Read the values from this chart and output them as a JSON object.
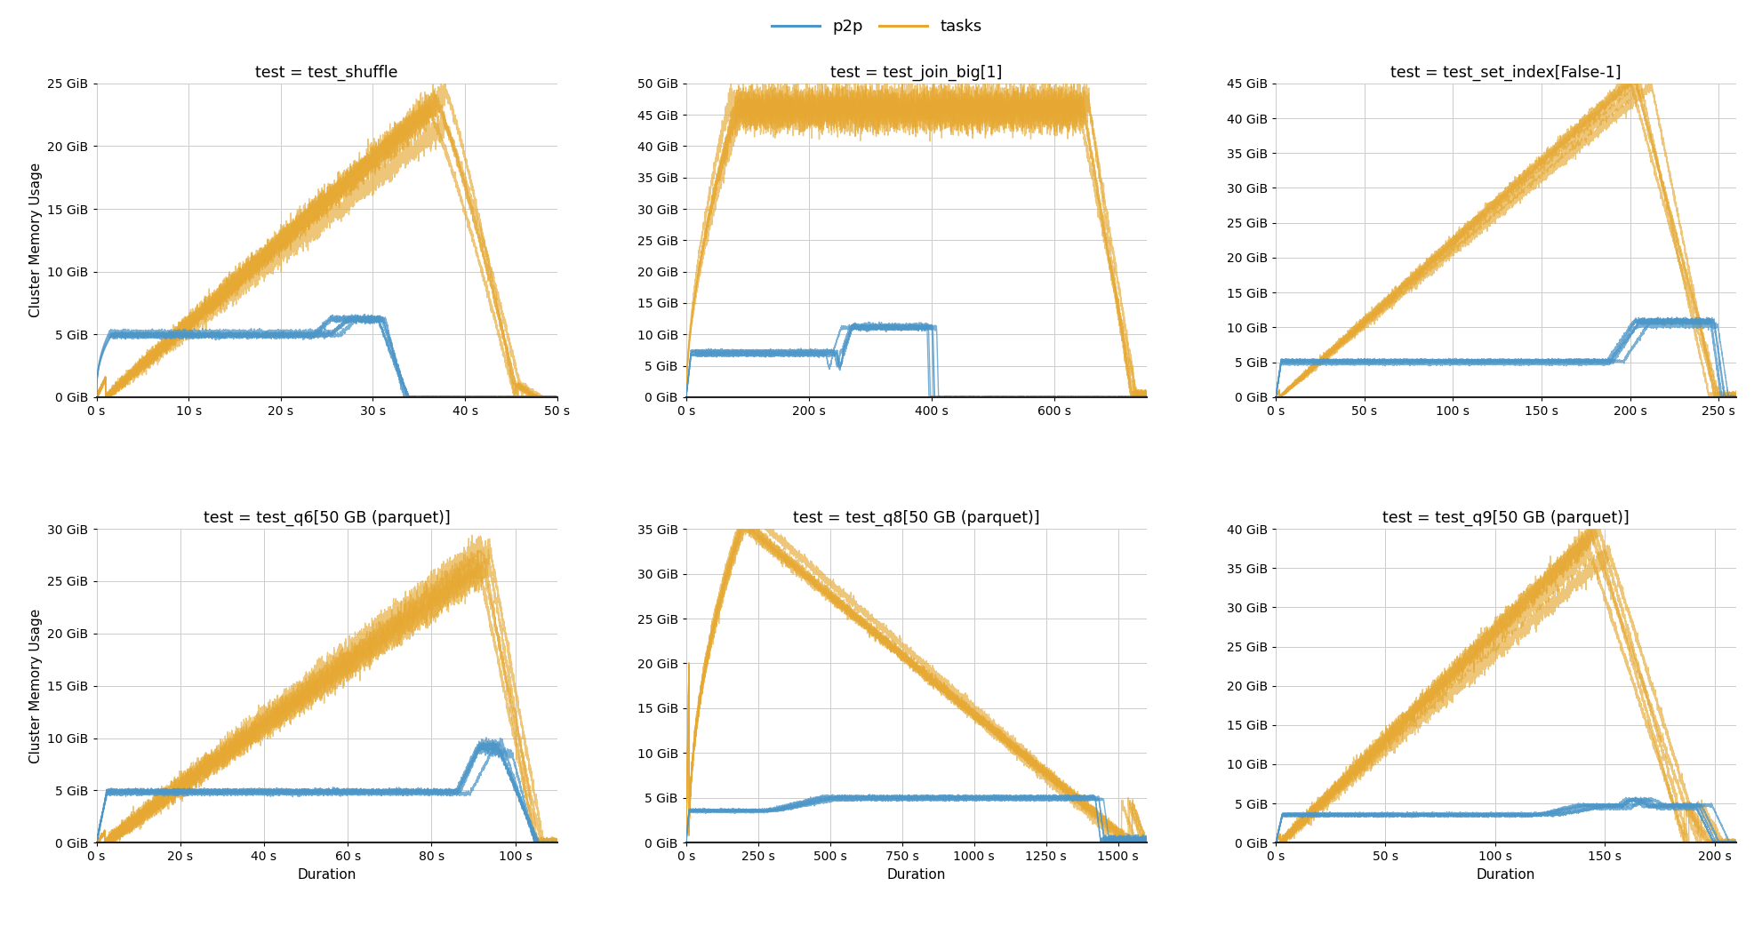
{
  "figure_size": [
    19.73,
    10.42
  ],
  "dpi": 100,
  "background_color": "#ffffff",
  "p2p_color": "#4c96c8",
  "tasks_color": "#e6a832",
  "p2p_alpha": 0.75,
  "tasks_alpha": 0.65,
  "line_width": 1.0,
  "legend_labels": [
    "p2p",
    "tasks"
  ],
  "subplot_titles": [
    "test = test_shuffle",
    "test = test_join_big[1]",
    "test = test_set_index[False-1]",
    "test = test_q6[50 GB (parquet)]",
    "test = test_q8[50 GB (parquet)]",
    "test = test_q9[50 GB (parquet)]"
  ],
  "ylabel": "Cluster Memory Usage",
  "xlabel": "Duration",
  "grid_color": "#cccccc",
  "subplots": {
    "test_shuffle": {
      "xlim": [
        0,
        50
      ],
      "ylim": [
        0,
        25
      ],
      "xticks": [
        0,
        10,
        20,
        30,
        40,
        50
      ],
      "xticklabels": [
        "0 s",
        "10 s",
        "20 s",
        "30 s",
        "40 s",
        "50 s"
      ],
      "yticks": [
        0,
        5,
        10,
        15,
        20,
        25
      ],
      "yticklabels": [
        "0 GiB",
        "5 GiB",
        "10 GiB",
        "15 GiB",
        "20 GiB",
        "25 GiB"
      ]
    },
    "test_join_big": {
      "xlim": [
        0,
        750
      ],
      "ylim": [
        0,
        50
      ],
      "xticks": [
        0,
        200,
        400,
        600
      ],
      "xticklabels": [
        "0 s",
        "200 s",
        "400 s",
        "600 s"
      ],
      "yticks": [
        0,
        5,
        10,
        15,
        20,
        25,
        30,
        35,
        40,
        45,
        50
      ],
      "yticklabels": [
        "0 GiB",
        "5 GiB",
        "10 GiB",
        "15 GiB",
        "20 GiB",
        "25 GiB",
        "30 GiB",
        "35 GiB",
        "40 GiB",
        "45 GiB",
        "50 GiB"
      ]
    },
    "test_set_index": {
      "xlim": [
        0,
        260
      ],
      "ylim": [
        0,
        45
      ],
      "xticks": [
        0,
        50,
        100,
        150,
        200,
        250
      ],
      "xticklabels": [
        "0 s",
        "50 s",
        "100 s",
        "150 s",
        "200 s",
        "250 s"
      ],
      "yticks": [
        0,
        5,
        10,
        15,
        20,
        25,
        30,
        35,
        40,
        45
      ],
      "yticklabels": [
        "0 GiB",
        "5 GiB",
        "10 GiB",
        "15 GiB",
        "20 GiB",
        "25 GiB",
        "30 GiB",
        "35 GiB",
        "40 GiB",
        "45 GiB"
      ]
    },
    "test_q6": {
      "xlim": [
        0,
        110
      ],
      "ylim": [
        0,
        30
      ],
      "xticks": [
        0,
        20,
        40,
        60,
        80,
        100
      ],
      "xticklabels": [
        "0 s",
        "20 s",
        "40 s",
        "60 s",
        "80 s",
        "100 s"
      ],
      "yticks": [
        0,
        5,
        10,
        15,
        20,
        25,
        30
      ],
      "yticklabels": [
        "0 GiB",
        "5 GiB",
        "10 GiB",
        "15 GiB",
        "20 GiB",
        "25 GiB",
        "30 GiB"
      ]
    },
    "test_q8": {
      "xlim": [
        0,
        1600
      ],
      "ylim": [
        0,
        35
      ],
      "xticks": [
        0,
        250,
        500,
        750,
        1000,
        1250,
        1500
      ],
      "xticklabels": [
        "0 s",
        "250 s",
        "500 s",
        "750 s",
        "1000 s",
        "1250 s",
        "1500 s"
      ],
      "yticks": [
        0,
        5,
        10,
        15,
        20,
        25,
        30,
        35
      ],
      "yticklabels": [
        "0 GiB",
        "5 GiB",
        "10 GiB",
        "15 GiB",
        "20 GiB",
        "25 GiB",
        "30 GiB",
        "35 GiB"
      ]
    },
    "test_q9": {
      "xlim": [
        0,
        210
      ],
      "ylim": [
        0,
        40
      ],
      "xticks": [
        0,
        50,
        100,
        150,
        200
      ],
      "xticklabels": [
        "0 s",
        "50 s",
        "100 s",
        "150 s",
        "200 s"
      ],
      "yticks": [
        0,
        5,
        10,
        15,
        20,
        25,
        30,
        35,
        40
      ],
      "yticklabels": [
        "0 GiB",
        "5 GiB",
        "10 GiB",
        "15 GiB",
        "20 GiB",
        "25 GiB",
        "30 GiB",
        "35 GiB",
        "40 GiB"
      ]
    }
  }
}
